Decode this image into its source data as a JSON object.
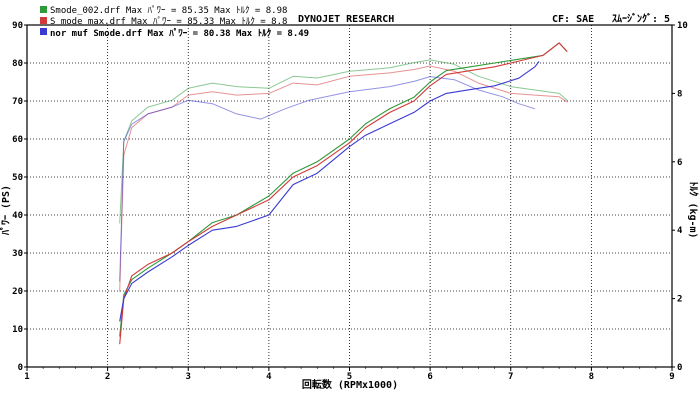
{
  "header": {
    "title": "DYNOJET RESEARCH",
    "cf": "CF: SAE",
    "smoothing": "ｽﾑｰｼﾞﾝｸﾞ: 5"
  },
  "legend": [
    {
      "text": "Smode_002.drf Max ﾊﾟﾜｰ = 85.35     Max ﾄﾙｸ = 8.98",
      "color": "#2e9a3a"
    },
    {
      "text": "S mode max.drf Max ﾊﾟﾜｰ = 85.33     Max ﾄﾙｸ = 8.8",
      "color": "#d23a3a"
    },
    {
      "text": "nor muf Smode.drf Max ﾊﾟﾜｰ = 80.38    Max ﾄﾙｸ = 8.49",
      "color": "#3a3ad2"
    }
  ],
  "chart_data": {
    "type": "line",
    "xlabel": "回転数 (RPMx1000)",
    "ylabel_left": "ﾊﾟﾜｰ (PS)",
    "ylabel_right": "ﾄﾙｸ (kg-m)",
    "xlim": [
      1,
      9
    ],
    "ylim_left": [
      0,
      90
    ],
    "ylim_right": [
      0,
      10
    ],
    "x_ticks": [
      1,
      2,
      3,
      4,
      5,
      6,
      7,
      8,
      9
    ],
    "y_ticks_left": [
      0,
      10,
      20,
      30,
      40,
      50,
      60,
      70,
      80,
      90
    ],
    "y_ticks_right": [
      0,
      2,
      4,
      6,
      8,
      10
    ],
    "grid": true,
    "series": [
      {
        "name": "Smode_002.drf",
        "color": "#2e9a3a",
        "power": [
          [
            2.15,
            8
          ],
          [
            2.2,
            19
          ],
          [
            2.3,
            23
          ],
          [
            2.5,
            26
          ],
          [
            2.8,
            30
          ],
          [
            3.0,
            33
          ],
          [
            3.3,
            38
          ],
          [
            3.6,
            40
          ],
          [
            4.0,
            45
          ],
          [
            4.3,
            51
          ],
          [
            4.6,
            54
          ],
          [
            5.0,
            60
          ],
          [
            5.2,
            64
          ],
          [
            5.5,
            68
          ],
          [
            5.8,
            71
          ],
          [
            6.0,
            75
          ],
          [
            6.2,
            78
          ],
          [
            6.5,
            79
          ],
          [
            6.8,
            80
          ],
          [
            7.1,
            81
          ],
          [
            7.4,
            82
          ],
          [
            7.6,
            85.3
          ],
          [
            7.7,
            83
          ]
        ],
        "torque": [
          [
            2.15,
            4.2
          ],
          [
            2.2,
            6.6
          ],
          [
            2.3,
            7.2
          ],
          [
            2.5,
            7.6
          ],
          [
            2.8,
            7.8
          ],
          [
            3.0,
            8.15
          ],
          [
            3.3,
            8.3
          ],
          [
            3.6,
            8.2
          ],
          [
            4.0,
            8.15
          ],
          [
            4.3,
            8.5
          ],
          [
            4.6,
            8.45
          ],
          [
            5.0,
            8.65
          ],
          [
            5.5,
            8.75
          ],
          [
            5.8,
            8.9
          ],
          [
            6.0,
            8.98
          ],
          [
            6.3,
            8.85
          ],
          [
            6.6,
            8.5
          ],
          [
            7.0,
            8.2
          ],
          [
            7.3,
            8.1
          ],
          [
            7.6,
            8.0
          ],
          [
            7.7,
            7.8
          ]
        ]
      },
      {
        "name": "S mode max.drf",
        "color": "#d23a3a",
        "power": [
          [
            2.15,
            6
          ],
          [
            2.2,
            18
          ],
          [
            2.3,
            24
          ],
          [
            2.5,
            27
          ],
          [
            2.8,
            30
          ],
          [
            3.0,
            33
          ],
          [
            3.3,
            37
          ],
          [
            3.6,
            40
          ],
          [
            4.0,
            44
          ],
          [
            4.3,
            50
          ],
          [
            4.6,
            53
          ],
          [
            5.0,
            59
          ],
          [
            5.2,
            63
          ],
          [
            5.5,
            67
          ],
          [
            5.8,
            70
          ],
          [
            6.0,
            74
          ],
          [
            6.2,
            77
          ],
          [
            6.5,
            78
          ],
          [
            6.8,
            79
          ],
          [
            7.1,
            80.5
          ],
          [
            7.4,
            82
          ],
          [
            7.6,
            85.3
          ],
          [
            7.7,
            83
          ]
        ],
        "torque": [
          [
            2.15,
            2.2
          ],
          [
            2.2,
            6.2
          ],
          [
            2.3,
            7.0
          ],
          [
            2.5,
            7.4
          ],
          [
            2.8,
            7.6
          ],
          [
            3.0,
            7.95
          ],
          [
            3.3,
            8.05
          ],
          [
            3.6,
            7.95
          ],
          [
            4.0,
            8.0
          ],
          [
            4.3,
            8.3
          ],
          [
            4.6,
            8.25
          ],
          [
            5.0,
            8.5
          ],
          [
            5.5,
            8.6
          ],
          [
            5.8,
            8.7
          ],
          [
            6.0,
            8.8
          ],
          [
            6.3,
            8.65
          ],
          [
            6.6,
            8.3
          ],
          [
            7.0,
            8.0
          ],
          [
            7.3,
            7.95
          ],
          [
            7.6,
            7.9
          ],
          [
            7.7,
            7.75
          ]
        ]
      },
      {
        "name": "nor muf Smode.drf",
        "color": "#3a3ad2",
        "power": [
          [
            2.15,
            12
          ],
          [
            2.2,
            18
          ],
          [
            2.3,
            22
          ],
          [
            2.5,
            25
          ],
          [
            2.8,
            29
          ],
          [
            3.0,
            32
          ],
          [
            3.3,
            36
          ],
          [
            3.6,
            37
          ],
          [
            4.0,
            40
          ],
          [
            4.3,
            48
          ],
          [
            4.6,
            51
          ],
          [
            5.0,
            58
          ],
          [
            5.2,
            61
          ],
          [
            5.5,
            64
          ],
          [
            5.8,
            67
          ],
          [
            6.0,
            70
          ],
          [
            6.2,
            72
          ],
          [
            6.5,
            73
          ],
          [
            6.8,
            74
          ],
          [
            7.1,
            76
          ],
          [
            7.3,
            79
          ],
          [
            7.35,
            80.4
          ]
        ],
        "torque": [
          [
            2.15,
            2.5
          ],
          [
            2.2,
            6.6
          ],
          [
            2.3,
            7.1
          ],
          [
            2.5,
            7.4
          ],
          [
            2.8,
            7.6
          ],
          [
            3.0,
            7.8
          ],
          [
            3.3,
            7.7
          ],
          [
            3.6,
            7.4
          ],
          [
            3.9,
            7.25
          ],
          [
            4.2,
            7.55
          ],
          [
            4.5,
            7.8
          ],
          [
            5.0,
            8.05
          ],
          [
            5.5,
            8.2
          ],
          [
            5.8,
            8.35
          ],
          [
            6.0,
            8.49
          ],
          [
            6.3,
            8.4
          ],
          [
            6.6,
            8.1
          ],
          [
            6.9,
            7.9
          ],
          [
            7.1,
            7.7
          ],
          [
            7.3,
            7.55
          ]
        ]
      }
    ]
  }
}
